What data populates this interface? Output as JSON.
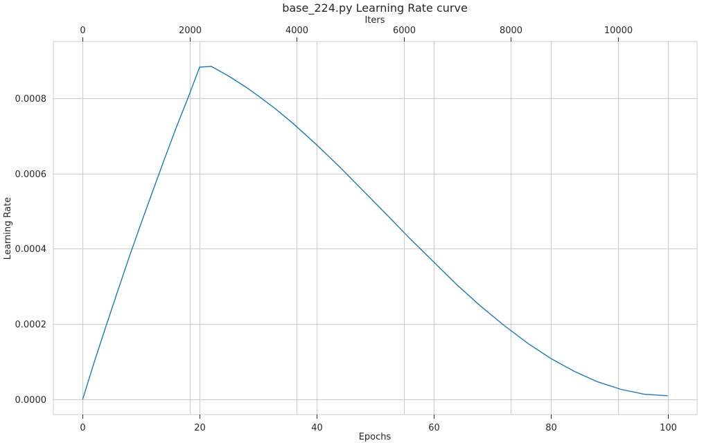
{
  "chart_data": {
    "type": "line",
    "title": "base_224.py Learning Rate curve",
    "xlabel": "Epochs",
    "ylabel": "Learning Rate",
    "x2label": "Iters",
    "xlim": [
      -5,
      105
    ],
    "ylim": [
      -4e-05,
      0.00095
    ],
    "x2lim": [
      -550,
      11480
    ],
    "xticks": [
      0,
      20,
      40,
      60,
      80,
      100
    ],
    "xtick_labels": [
      "0",
      "20",
      "40",
      "60",
      "80",
      "100"
    ],
    "yticks": [
      0,
      0.0002,
      0.0004,
      0.0006,
      0.0008
    ],
    "ytick_labels": [
      "0.0000",
      "0.0002",
      "0.0004",
      "0.0006",
      "0.0008"
    ],
    "x2ticks": [
      0,
      2000,
      4000,
      6000,
      8000,
      10000
    ],
    "x2tick_labels": [
      "0",
      "2000",
      "4000",
      "6000",
      "8000",
      "10000"
    ],
    "grid": true,
    "series": [
      {
        "color": "#1f77b4",
        "x": [
          0,
          2,
          4,
          6,
          8,
          10,
          12,
          14,
          16,
          18,
          20,
          22,
          25,
          28,
          30,
          33,
          36,
          40,
          44,
          48,
          52,
          56,
          60,
          64,
          68,
          72,
          76,
          80,
          84,
          88,
          92,
          96,
          100
        ],
        "y": [
          0,
          0.0001,
          0.000195,
          0.000288,
          0.00038,
          0.000468,
          0.000554,
          0.000639,
          0.000722,
          0.0008,
          0.000882,
          0.000884,
          0.000858,
          0.000828,
          0.000806,
          0.000771,
          0.000732,
          0.000676,
          0.000616,
          0.000553,
          0.00049,
          0.000426,
          0.000365,
          0.000304,
          0.000248,
          0.000197,
          0.00015,
          0.000109,
          7.5e-05,
          4.7e-05,
          2.7e-05,
          1.4e-05,
          1e-05
        ]
      }
    ]
  }
}
